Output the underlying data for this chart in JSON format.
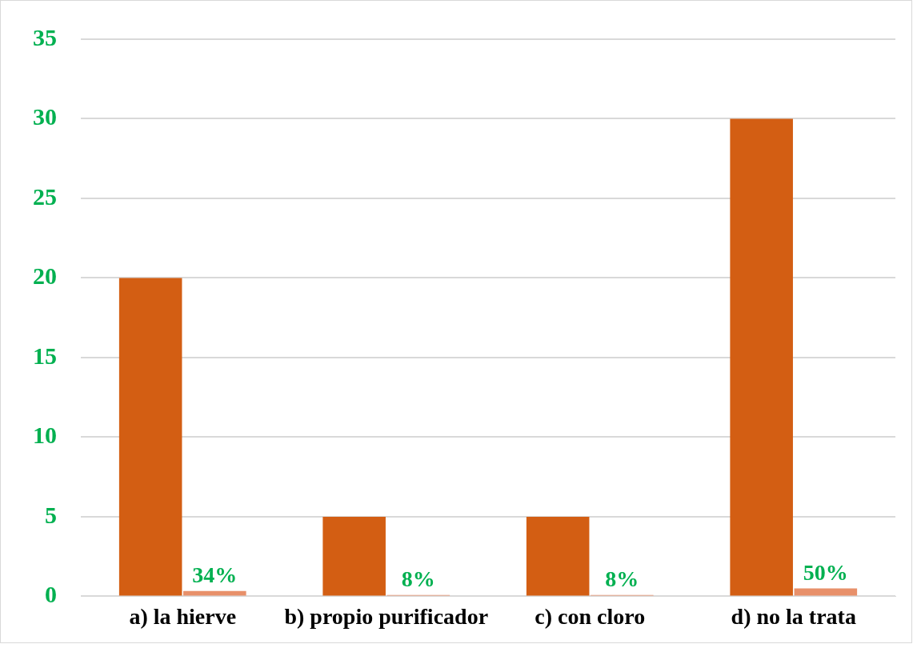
{
  "chart_data": {
    "type": "bar",
    "categories": [
      "a) la hierve",
      "b) propio purificador",
      "c) con cloro",
      "d) no la trata"
    ],
    "series": [
      {
        "color": "#d35e13",
        "values": [
          20,
          5,
          5,
          30
        ]
      },
      {
        "color": "#e8906a",
        "values": [
          0.34,
          0.08,
          0.08,
          0.5
        ],
        "value_labels": [
          "34%",
          "8%",
          "8%",
          "50%"
        ]
      }
    ],
    "ylim": [
      0,
      35
    ],
    "yticks": [
      0,
      5,
      10,
      15,
      20,
      25,
      30,
      35
    ],
    "grid": "y",
    "legend": false
  }
}
